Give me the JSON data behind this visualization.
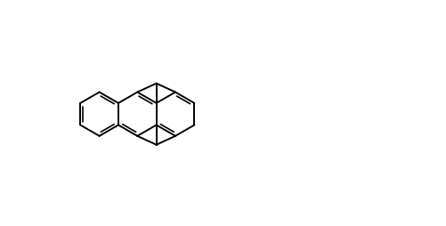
{
  "bg": "#ffffff",
  "lw": 1.5,
  "lw_double": 1.5,
  "font_size": 9,
  "font_size_small": 8,
  "figsize": [
    5.01,
    2.55
  ],
  "dpi": 100
}
